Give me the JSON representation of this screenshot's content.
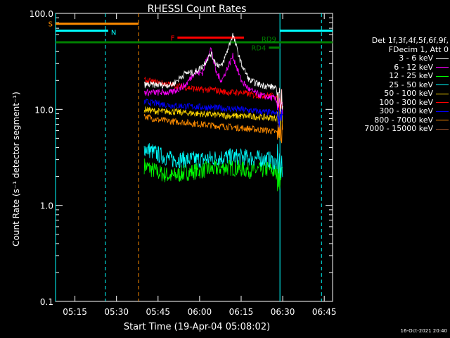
{
  "chart_data": {
    "type": "line",
    "title": "RHESSI Count Rates",
    "xlabel": "Start Time (19-Apr-04 05:08:02)",
    "ylabel": "Count Rate (s⁻¹ detector segment⁻¹)",
    "yscale": "log",
    "ylim": [
      0.1,
      100.0
    ],
    "yticks": [
      "0.1",
      "1.0",
      "10.0",
      "100.0"
    ],
    "xlim": [
      "05:08",
      "06:48"
    ],
    "xticks": [
      "05:15",
      "05:30",
      "05:45",
      "06:00",
      "06:15",
      "06:30",
      "06:45"
    ],
    "legend_position": "right",
    "legend_header": [
      "Det 1f,3f,4f,5f,6f,9f,",
      "FDecim 1, Att 0"
    ],
    "series": [
      {
        "name": "3 - 6 keV",
        "color": "#ffffff",
        "x": [
          "05:40",
          "05:50",
          "05:55",
          "05:58",
          "06:01",
          "06:04",
          "06:06",
          "06:08",
          "06:12",
          "06:15",
          "06:18",
          "06:22",
          "06:27",
          "06:30"
        ],
        "y": [
          18,
          18,
          24,
          24,
          28,
          38,
          30,
          28,
          60,
          30,
          20,
          18,
          17,
          12
        ]
      },
      {
        "name": "6 - 12 keV",
        "color": "#ff00ff",
        "x": [
          "05:40",
          "05:50",
          "05:55",
          "05:58",
          "06:01",
          "06:04",
          "06:06",
          "06:08",
          "06:12",
          "06:15",
          "06:18",
          "06:22",
          "06:27",
          "06:30"
        ],
        "y": [
          15,
          15,
          18,
          24,
          24,
          44,
          24,
          20,
          36,
          20,
          16,
          14,
          13,
          10
        ]
      },
      {
        "name": "12 - 25 keV",
        "color": "#00ff00",
        "x": [
          "05:40",
          "05:45",
          "05:50",
          "05:55",
          "06:00",
          "06:05",
          "06:10",
          "06:15",
          "06:20",
          "06:25",
          "06:30"
        ],
        "y": [
          2.6,
          2.2,
          2.0,
          2.2,
          2.3,
          2.4,
          2.5,
          2.4,
          2.3,
          2.4,
          2.0
        ]
      },
      {
        "name": "25 - 50 keV",
        "color": "#00ffff",
        "x": [
          "05:40",
          "05:45",
          "05:50",
          "05:55",
          "06:00",
          "06:05",
          "06:10",
          "06:15",
          "06:20",
          "06:25",
          "06:30"
        ],
        "y": [
          4.0,
          3.4,
          3.0,
          3.0,
          3.0,
          3.1,
          3.2,
          3.2,
          3.1,
          3.0,
          2.6
        ]
      },
      {
        "name": "50 - 100 keV",
        "color": "#ffd700",
        "x": [
          "05:40",
          "05:45",
          "05:50",
          "05:55",
          "06:00",
          "06:05",
          "06:10",
          "06:15",
          "06:20",
          "06:25",
          "06:30"
        ],
        "y": [
          10,
          9.5,
          9.5,
          9.2,
          9.0,
          8.8,
          8.6,
          8.5,
          8.4,
          8.2,
          8.0
        ]
      },
      {
        "name": "100 - 300 keV",
        "color": "#ff0000",
        "x": [
          "05:40",
          "05:45",
          "05:50",
          "05:55",
          "06:00",
          "06:05",
          "06:10",
          "06:15",
          "06:20",
          "06:25",
          "06:30"
        ],
        "y": [
          20,
          19,
          18,
          17,
          16,
          16,
          15,
          15,
          14,
          14,
          13
        ]
      },
      {
        "name": "300 - 800 keV",
        "color": "#0000ff",
        "x": [
          "05:40",
          "05:45",
          "05:50",
          "05:55",
          "06:00",
          "06:05",
          "06:10",
          "06:15",
          "06:20",
          "06:25",
          "06:30"
        ],
        "y": [
          12,
          11.5,
          11,
          10.8,
          10.6,
          10.4,
          10.2,
          10,
          9.6,
          9.3,
          8.8
        ]
      },
      {
        "name": "800 - 7000 keV",
        "color": "#ff8c00",
        "x": [
          "05:40",
          "05:45",
          "05:50",
          "05:55",
          "06:00",
          "06:05",
          "06:10",
          "06:15",
          "06:20",
          "06:25",
          "06:30"
        ],
        "y": [
          8.5,
          7.8,
          7.5,
          7.3,
          7.0,
          6.8,
          6.6,
          6.4,
          6.2,
          6.0,
          5.6
        ]
      },
      {
        "name": "7000 - 15000 keV",
        "color": "#a0522d",
        "x": [],
        "y": []
      }
    ],
    "annotations": [
      {
        "label": "S",
        "color": "#ff8c00",
        "x_start": "05:08",
        "x_end": "05:38",
        "y": 78
      },
      {
        "label": "N",
        "color": "#00ffff",
        "x_start": "05:08",
        "x_end": "05:27",
        "y": 66
      },
      {
        "label": "F",
        "color": "#ff0000",
        "x_start": "05:52",
        "x_end": "06:16",
        "y": 56
      },
      {
        "label": "RD9",
        "color": "#008000",
        "x_start": "05:08",
        "x_end": "06:48",
        "y": 50
      },
      {
        "label": "RD4",
        "color": "#008000",
        "x_start": "06:25",
        "x_end": "06:29",
        "y": 44
      },
      {
        "label": "",
        "color": "#00ffff",
        "x_start": "06:29",
        "x_end": "06:48",
        "y": 66
      }
    ],
    "vlines": [
      {
        "x": "05:08",
        "color": "#00ffff",
        "style": "solid"
      },
      {
        "x": "05:26",
        "color": "#00ffff",
        "style": "dashed"
      },
      {
        "x": "05:38",
        "color": "#ff8c00",
        "style": "dashed"
      },
      {
        "x": "06:29",
        "color": "#00ffff",
        "style": "solid"
      },
      {
        "x": "06:44",
        "color": "#00ffff",
        "style": "dashed"
      }
    ]
  },
  "footer": {
    "stamp": "16-Oct-2021 20:40"
  }
}
